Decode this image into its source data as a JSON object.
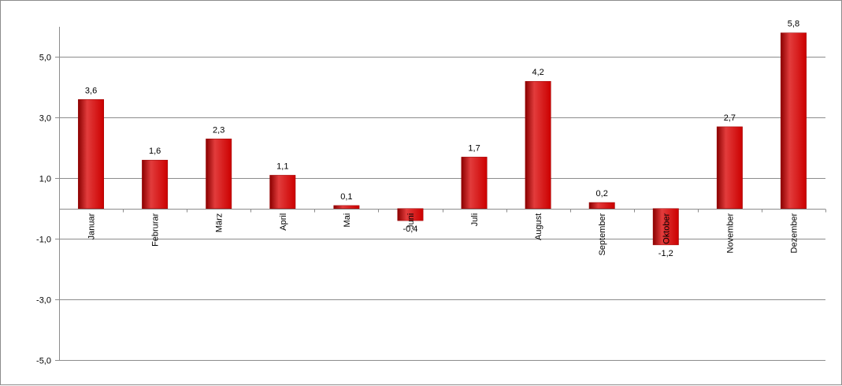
{
  "chart_data": {
    "type": "bar",
    "categories": [
      "Januar",
      "Februrar",
      "März",
      "April",
      "Mai",
      "Juni",
      "Juli",
      "August",
      "September",
      "Oktober",
      "November",
      "Dezember"
    ],
    "values": [
      3.6,
      1.6,
      2.3,
      1.1,
      0.1,
      -0.4,
      1.7,
      4.2,
      0.2,
      -1.2,
      2.7,
      5.8
    ],
    "value_labels": [
      "3,6",
      "1,6",
      "2,3",
      "1,1",
      "0,1",
      "-0,4",
      "1,7",
      "4,2",
      "0,2",
      "-1,2",
      "2,7",
      "5,8"
    ],
    "title": "",
    "xlabel": "",
    "ylabel": "",
    "ylim": [
      -5,
      6
    ],
    "yticks": [
      5,
      3,
      1,
      -1,
      -3,
      -5
    ],
    "ytick_labels": [
      "5,0",
      "3,0",
      "1,0",
      "-1,0",
      "-3,0",
      "-5,0"
    ],
    "grid": true,
    "legend": "none",
    "bar_color": "#cc0000",
    "bar_highlight_color": "#e23c3c",
    "bar_shadow_color": "#8a0000"
  }
}
